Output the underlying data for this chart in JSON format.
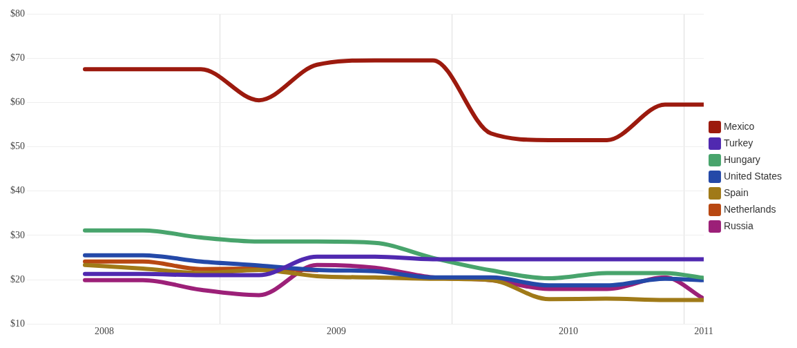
{
  "chart_data": {
    "type": "line",
    "x": [
      "2008-06",
      "2008-09",
      "2008-12",
      "2009-03",
      "2009-06",
      "2009-09",
      "2009-12",
      "2010-03",
      "2010-06",
      "2010-09",
      "2010-12",
      "2011-02"
    ],
    "series": [
      {
        "name": "Mexico",
        "color": "#9c1a0e",
        "values": [
          67.5,
          67.5,
          67.5,
          60.5,
          68.5,
          69.5,
          69.5,
          53,
          51.5,
          51.5,
          59.5,
          59.5
        ]
      },
      {
        "name": "Turkey",
        "color": "#5029b0",
        "values": [
          21.3,
          21.3,
          21,
          21,
          25.2,
          25.2,
          24.6,
          24.6,
          24.6,
          24.6,
          24.6,
          24.6
        ]
      },
      {
        "name": "Hungary",
        "color": "#48a46c",
        "values": [
          31.1,
          31.1,
          29.5,
          28.6,
          28.6,
          28.3,
          24.9,
          22.1,
          20.3,
          21.5,
          21.5,
          20.4
        ]
      },
      {
        "name": "United States",
        "color": "#2449a8",
        "values": [
          25.5,
          25.5,
          24.1,
          23.2,
          22.2,
          21.9,
          20.5,
          20.5,
          18.7,
          18.7,
          20.2,
          19.9
        ]
      },
      {
        "name": "Spain",
        "color": "#a07a18",
        "values": [
          23.3,
          22.5,
          21.5,
          22.2,
          20.8,
          20.5,
          20.2,
          19.9,
          15.6,
          15.7,
          15.4,
          15.4
        ]
      },
      {
        "name": "Netherlands",
        "color": "#b84812",
        "values": [
          24.1,
          24.1,
          22.4,
          22.5,
          22.1,
          null,
          null,
          null,
          null,
          null,
          null,
          null
        ]
      },
      {
        "name": "Russia",
        "color": "#9c2078",
        "values": [
          19.9,
          19.9,
          17.7,
          16.5,
          23.3,
          22.7,
          20.5,
          19.9,
          17.9,
          17.9,
          20.5,
          15.7
        ]
      }
    ],
    "xlim": [
      "2008-03",
      "2011-02"
    ],
    "xticks": [
      {
        "value": "2008-07",
        "label": "2008"
      },
      {
        "value": "2009-01",
        "label": null
      },
      {
        "value": "2009-07",
        "label": "2009"
      },
      {
        "value": "2010-01",
        "label": null
      },
      {
        "value": "2010-07",
        "label": "2010"
      },
      {
        "value": "2011-01",
        "label": null
      },
      {
        "value": "2011-02",
        "label": "2011"
      }
    ],
    "ylim": [
      10,
      80
    ],
    "yticks": [
      {
        "value": 10,
        "label": "$10"
      },
      {
        "value": 20,
        "label": "$20"
      },
      {
        "value": 30,
        "label": "$30"
      },
      {
        "value": 40,
        "label": "$40"
      },
      {
        "value": 50,
        "label": "$50"
      },
      {
        "value": 60,
        "label": "$60"
      },
      {
        "value": 70,
        "label": "$70"
      },
      {
        "value": 80,
        "label": "$80"
      }
    ],
    "grid": true,
    "legend": "right",
    "marker": "none",
    "line_style": "solid"
  }
}
